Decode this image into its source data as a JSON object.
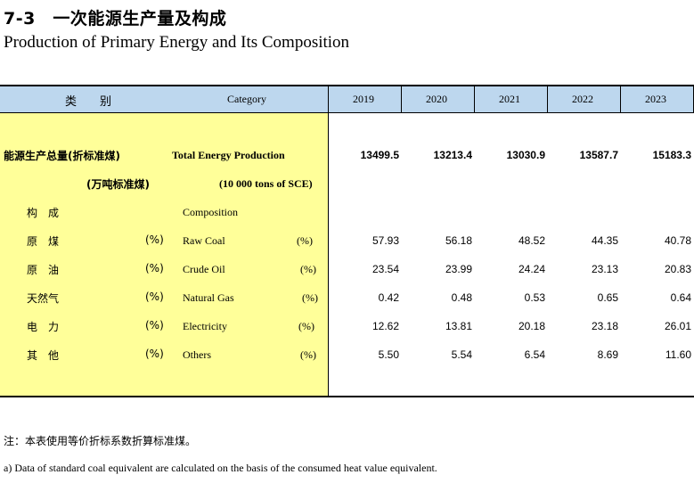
{
  "title": {
    "cn": "7-3　一次能源生产量及构成",
    "en": "Production of Primary Energy and Its Composition"
  },
  "header": {
    "category_cn": "类　　别",
    "category_en": "Category",
    "years": [
      "2019",
      "2020",
      "2021",
      "2022",
      "2023"
    ]
  },
  "total": {
    "cn": "能源生产总量(折标准煤)",
    "en": "Total Energy Production",
    "unit_cn": "(万吨标准煤)",
    "unit_en": "(10 000 tons of SCE)",
    "values": [
      "13499.5",
      "13213.4",
      "13030.9",
      "13587.7",
      "15183.3"
    ]
  },
  "composition": {
    "cn": "构　成",
    "en": "Composition"
  },
  "rows": [
    {
      "cn": "原　煤",
      "unit_cn": "(%)",
      "en": "Raw Coal",
      "unit_en": "(%)",
      "values": [
        "57.93",
        "56.18",
        "48.52",
        "44.35",
        "40.78"
      ]
    },
    {
      "cn": "原　油",
      "unit_cn": "(%)",
      "en": "Crude Oil",
      "unit_en": "(%)",
      "values": [
        "23.54",
        "23.99",
        "24.24",
        "23.13",
        "20.83"
      ]
    },
    {
      "cn": "天然气",
      "unit_cn": "(%)",
      "en": "Natural Gas",
      "unit_en": "(%)",
      "values": [
        "0.42",
        "0.48",
        "0.53",
        "0.65",
        "0.64"
      ]
    },
    {
      "cn": "电　力",
      "unit_cn": "(%)",
      "en": "Electricity",
      "unit_en": "(%)",
      "values": [
        "12.62",
        "13.81",
        "20.18",
        "23.18",
        "26.01"
      ]
    },
    {
      "cn": "其　他",
      "unit_cn": "(%)",
      "en": "Others",
      "unit_en": "(%)",
      "values": [
        "5.50",
        "5.54",
        "6.54",
        "8.69",
        "11.60"
      ]
    }
  ],
  "notes": {
    "cn": "注：本表使用等价折标系数折算标准煤。",
    "en": "a) Data of standard coal equivalent are calculated on the basis of the consumed heat value equivalent."
  },
  "colors": {
    "header_band": "#bdd7ee",
    "label_panel": "#ffff99"
  }
}
